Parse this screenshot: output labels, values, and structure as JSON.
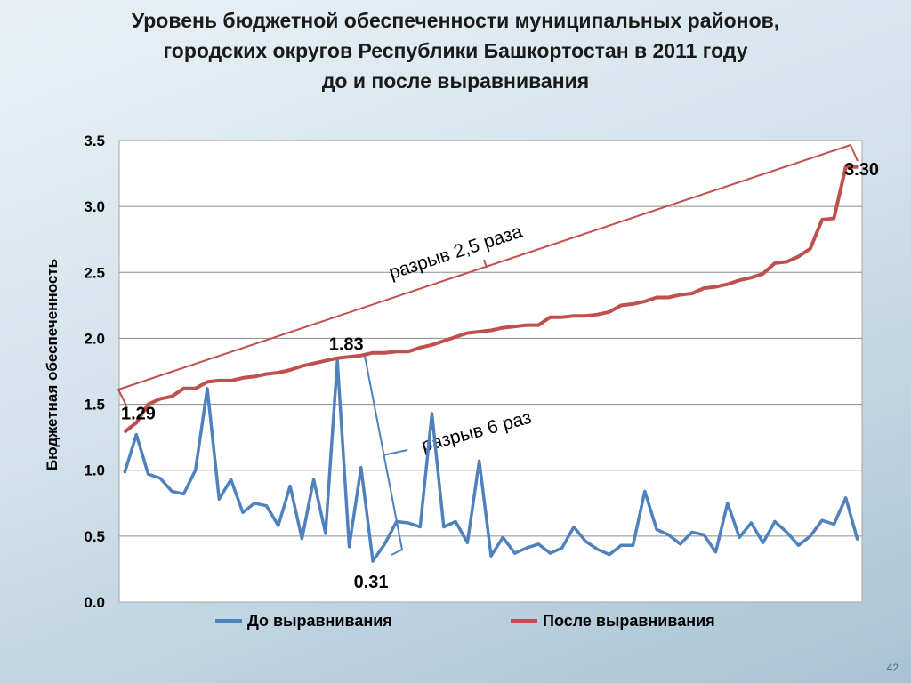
{
  "title_lines": [
    "Уровень бюджетной обеспеченности муниципальных районов,",
    "городских округов Республики Башкортостан в 2011 году",
    "до и после выравнивания"
  ],
  "page_number": "42",
  "colors": {
    "before": "#4f81bd",
    "after": "#c0504d",
    "grid": "#8c8c8c"
  },
  "chart_data": {
    "type": "line",
    "title": "Уровень бюджетной обеспеченности муниципальных районов, городских округов Республики Башкортостан в 2011 году до и после выравнивания",
    "ylabel": "Бюджетная обеспеченность",
    "xlabel": "",
    "ylim": [
      0,
      3.5
    ],
    "yticks": [
      "0.0",
      "0.5",
      "1.0",
      "1.5",
      "2.0",
      "2.5",
      "3.0",
      "3.5"
    ],
    "grid": true,
    "legend_position": "bottom",
    "series": [
      {
        "name": "До выравнивания",
        "values": [
          0.98,
          1.27,
          0.97,
          0.94,
          0.84,
          0.82,
          1.0,
          1.62,
          0.78,
          0.93,
          0.68,
          0.75,
          0.73,
          0.58,
          0.88,
          0.48,
          0.93,
          0.52,
          1.83,
          0.42,
          1.02,
          0.31,
          0.44,
          0.61,
          0.6,
          0.57,
          1.43,
          0.57,
          0.61,
          0.45,
          1.07,
          0.35,
          0.49,
          0.37,
          0.41,
          0.44,
          0.37,
          0.41,
          0.57,
          0.46,
          0.4,
          0.36,
          0.43,
          0.43,
          0.84,
          0.55,
          0.51,
          0.44,
          0.53,
          0.51,
          0.38,
          0.75,
          0.49,
          0.6,
          0.45,
          0.61,
          0.53,
          0.43,
          0.5,
          0.62,
          0.59,
          0.79,
          0.47
        ]
      },
      {
        "name": "После выравнивания",
        "values": [
          1.29,
          1.36,
          1.5,
          1.54,
          1.56,
          1.62,
          1.62,
          1.67,
          1.68,
          1.68,
          1.7,
          1.71,
          1.73,
          1.74,
          1.76,
          1.79,
          1.81,
          1.83,
          1.85,
          1.86,
          1.87,
          1.89,
          1.89,
          1.9,
          1.9,
          1.93,
          1.95,
          1.98,
          2.01,
          2.04,
          2.05,
          2.06,
          2.08,
          2.09,
          2.1,
          2.1,
          2.16,
          2.16,
          2.17,
          2.17,
          2.18,
          2.2,
          2.25,
          2.26,
          2.28,
          2.31,
          2.31,
          2.33,
          2.34,
          2.38,
          2.39,
          2.41,
          2.44,
          2.46,
          2.49,
          2.57,
          2.58,
          2.62,
          2.68,
          2.9,
          2.91,
          3.3,
          3.3
        ]
      }
    ],
    "annotations": {
      "gap_after": "разрыв 2,5 раза",
      "gap_before": "разрыв 6 раз",
      "labels": [
        {
          "text": "1.29",
          "series": 1,
          "index": 0
        },
        {
          "text": "3.30",
          "series": 1,
          "index": 62
        },
        {
          "text": "1.83",
          "series": 0,
          "index": 18
        },
        {
          "text": "0.31",
          "series": 0,
          "index": 21
        }
      ]
    }
  }
}
